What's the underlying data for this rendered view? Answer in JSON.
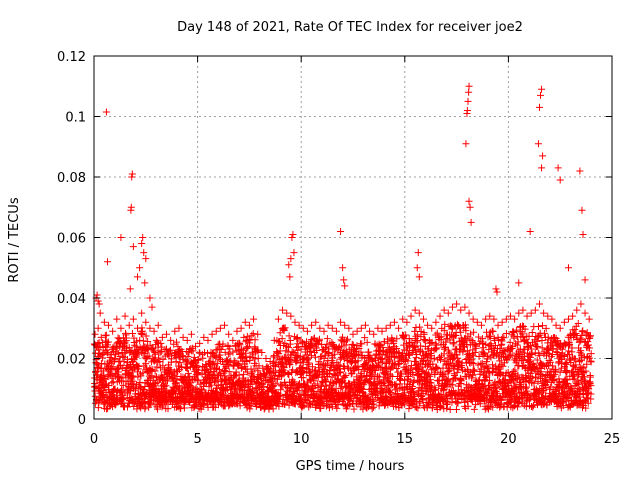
{
  "chart_data": {
    "type": "scatter",
    "title": "Day 148 of 2021, Rate Of TEC Index for receiver joe2",
    "xlabel": "GPS time / hours",
    "ylabel": "ROTI / TECUs",
    "xlim": [
      0,
      25
    ],
    "ylim": [
      0,
      0.12
    ],
    "grid": true,
    "marker": "+",
    "color": "#ff0000",
    "x_ticks": [
      0,
      5,
      10,
      15,
      20,
      25
    ],
    "x_tick_labels": [
      "0",
      "5",
      "10",
      "15",
      "20",
      "25"
    ],
    "y_ticks": [
      0,
      0.02,
      0.04,
      0.06,
      0.08,
      0.1,
      0.12
    ],
    "y_tick_labels": [
      "0",
      "0.02",
      "0.04",
      "0.06",
      "0.08",
      "0.1",
      "0.12"
    ],
    "series": [
      {
        "name": "ROTI",
        "x": [
          0.1,
          0.15,
          0.2,
          0.25,
          0.3,
          0.6,
          0.65,
          1.3,
          1.75,
          1.78,
          1.8,
          1.82,
          1.85,
          1.9,
          2.1,
          2.2,
          2.3,
          2.35,
          2.4,
          2.45,
          2.5,
          2.7,
          2.8,
          9.4,
          9.45,
          9.5,
          9.55,
          9.6,
          9.65,
          11.9,
          12.0,
          12.05,
          12.1,
          15.6,
          15.65,
          15.7,
          17.95,
          18.0,
          18.02,
          18.05,
          18.08,
          18.1,
          18.1,
          18.15,
          18.2,
          19.4,
          19.45,
          20.5,
          21.05,
          21.45,
          21.5,
          21.55,
          21.6,
          21.6,
          21.65,
          22.4,
          22.5,
          22.9,
          23.45,
          23.55,
          23.6,
          23.7,
          0.05,
          0.2,
          0.35,
          0.5,
          0.7,
          0.9,
          1.1,
          1.3,
          1.5,
          1.7,
          1.9,
          2.1,
          2.3,
          2.5,
          2.7,
          2.9,
          3.1,
          3.3,
          3.5,
          3.7,
          3.9,
          4.1,
          4.3,
          4.5,
          4.7,
          4.9,
          5.1,
          5.3,
          5.5,
          5.7,
          5.9,
          6.1,
          6.3,
          6.5,
          6.7,
          6.9,
          7.1,
          7.3,
          7.5,
          7.7,
          7.9,
          8.1,
          8.3,
          8.5,
          8.7,
          8.9,
          9.1,
          9.3,
          9.5,
          9.7,
          9.9,
          10.1,
          10.3,
          10.5,
          10.7,
          10.9,
          11.1,
          11.3,
          11.5,
          11.7,
          11.9,
          12.1,
          12.3,
          12.5,
          12.7,
          12.9,
          13.1,
          13.3,
          13.5,
          13.7,
          13.9,
          14.1,
          14.3,
          14.5,
          14.7,
          14.9,
          15.1,
          15.3,
          15.5,
          15.7,
          15.9,
          16.1,
          16.3,
          16.5,
          16.7,
          16.9,
          17.1,
          17.3,
          17.5,
          17.7,
          17.9,
          18.1,
          18.3,
          18.5,
          18.7,
          18.9,
          19.1,
          19.3,
          19.5,
          19.7,
          19.9,
          20.1,
          20.3,
          20.5,
          20.7,
          20.9,
          21.1,
          21.3,
          21.5,
          21.7,
          21.9,
          22.1,
          22.3,
          22.5,
          22.7,
          22.9,
          23.1,
          23.3,
          23.5,
          23.7,
          23.9
        ],
        "y": [
          0.04,
          0.041,
          0.039,
          0.038,
          0.035,
          0.1015,
          0.052,
          0.06,
          0.043,
          0.069,
          0.07,
          0.08,
          0.081,
          0.057,
          0.047,
          0.05,
          0.058,
          0.06,
          0.055,
          0.045,
          0.053,
          0.04,
          0.037,
          0.051,
          0.047,
          0.053,
          0.06,
          0.061,
          0.055,
          0.062,
          0.05,
          0.046,
          0.044,
          0.05,
          0.055,
          0.047,
          0.091,
          0.101,
          0.102,
          0.105,
          0.108,
          0.11,
          0.072,
          0.07,
          0.065,
          0.043,
          0.042,
          0.045,
          0.062,
          0.091,
          0.103,
          0.107,
          0.109,
          0.083,
          0.087,
          0.083,
          0.079,
          0.05,
          0.082,
          0.069,
          0.061,
          0.046,
          0.028,
          0.03,
          0.027,
          0.032,
          0.031,
          0.029,
          0.033,
          0.03,
          0.034,
          0.031,
          0.033,
          0.03,
          0.035,
          0.032,
          0.03,
          0.029,
          0.031,
          0.027,
          0.028,
          0.026,
          0.029,
          0.03,
          0.027,
          0.026,
          0.028,
          0.024,
          0.025,
          0.027,
          0.026,
          0.028,
          0.029,
          0.03,
          0.031,
          0.028,
          0.026,
          0.029,
          0.03,
          0.032,
          0.031,
          0.033,
          0.028,
          0.022,
          0.02,
          0.019,
          0.026,
          0.033,
          0.036,
          0.035,
          0.034,
          0.032,
          0.031,
          0.03,
          0.029,
          0.031,
          0.032,
          0.03,
          0.029,
          0.031,
          0.03,
          0.029,
          0.032,
          0.031,
          0.03,
          0.028,
          0.029,
          0.03,
          0.031,
          0.029,
          0.028,
          0.03,
          0.029,
          0.03,
          0.031,
          0.032,
          0.03,
          0.033,
          0.032,
          0.034,
          0.036,
          0.035,
          0.033,
          0.031,
          0.03,
          0.032,
          0.034,
          0.036,
          0.035,
          0.037,
          0.038,
          0.036,
          0.037,
          0.035,
          0.033,
          0.032,
          0.031,
          0.033,
          0.034,
          0.033,
          0.031,
          0.032,
          0.033,
          0.034,
          0.033,
          0.035,
          0.036,
          0.034,
          0.035,
          0.036,
          0.038,
          0.035,
          0.034,
          0.033,
          0.031,
          0.03,
          0.032,
          0.033,
          0.034,
          0.036,
          0.038,
          0.035,
          0.033
        ]
      }
    ],
    "dense_band_note": "Dense red + markers fill roughly 0.002–0.03 TECU across 0–24 h"
  }
}
